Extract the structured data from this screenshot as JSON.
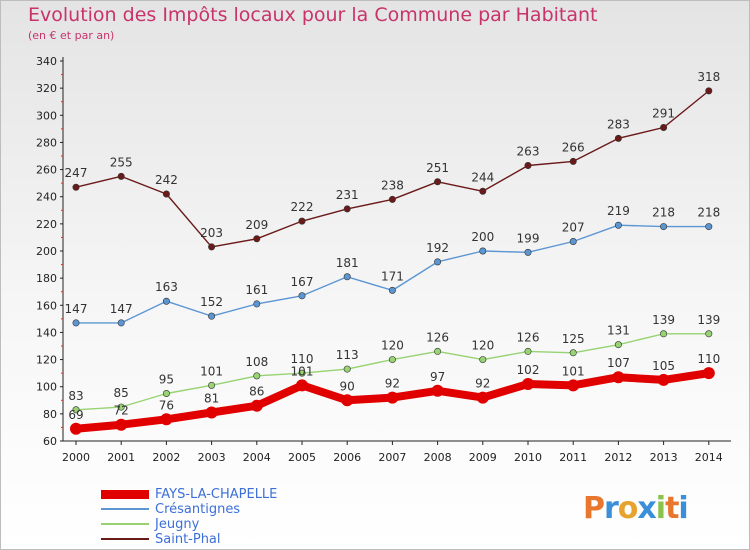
{
  "chart_data": {
    "type": "line",
    "title": "Evolution des Impôts locaux pour la Commune par Habitant",
    "subtitle": "(en € et par an)",
    "x": [
      "2000",
      "2001",
      "2002",
      "2003",
      "2004",
      "2005",
      "2006",
      "2007",
      "2008",
      "2009",
      "2010",
      "2011",
      "2012",
      "2013",
      "2014"
    ],
    "ylim": [
      60,
      340
    ],
    "yticks": [
      60,
      80,
      100,
      120,
      140,
      160,
      180,
      200,
      220,
      240,
      260,
      280,
      300,
      320,
      340
    ],
    "grid": false,
    "legend_position": "bottom-left",
    "series": [
      {
        "name": "FAYS-LA-CHAPELLE",
        "color": "#e00000",
        "values": [
          69,
          72,
          76,
          81,
          86,
          101,
          90,
          92,
          97,
          92,
          102,
          101,
          107,
          105,
          110
        ]
      },
      {
        "name": "Crésantignes",
        "color": "#5b96d3",
        "values": [
          147,
          147,
          163,
          152,
          161,
          167,
          181,
          171,
          192,
          200,
          199,
          207,
          219,
          218,
          218
        ]
      },
      {
        "name": "Jeugny",
        "color": "#97d372",
        "values": [
          83,
          85,
          95,
          101,
          108,
          110,
          113,
          120,
          126,
          120,
          126,
          125,
          131,
          139,
          139
        ]
      },
      {
        "name": "Saint-Phal",
        "color": "#6b1a1a",
        "values": [
          247,
          255,
          242,
          203,
          209,
          222,
          231,
          238,
          251,
          244,
          263,
          266,
          283,
          291,
          318
        ]
      }
    ],
    "logo_text": "Proxiti"
  }
}
